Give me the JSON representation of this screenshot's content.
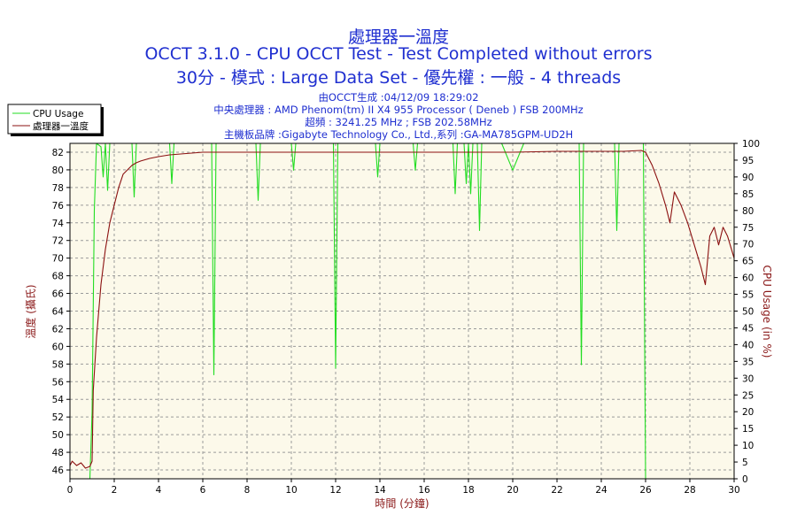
{
  "chart_data": {
    "type": "line",
    "title": "處理器一溫度",
    "subtitle": "OCCT 3.1.0 - CPU OCCT Test - Test Completed without errors",
    "subtitle2": "30分 - 模式 : Large Data Set - 優先權 : 一般 - 4 threads",
    "info": [
      "由OCCT生成 :04/12/09 18:29:02",
      "中央處理器 : AMD Phenom(tm) II X4 955 Processor ( Deneb ) FSB 200MHz",
      "超頻 : 3241.25 MHz ; FSB 202.58MHz",
      "主機板品牌 :Gigabyte Technology Co., Ltd.,系列 :GA-MA785GPM-UD2H"
    ],
    "xlabel": "時間 (分鐘)",
    "ylabel": "溫度 (攝氏)",
    "y2label": "CPU Usage (in %)",
    "xlim": [
      0,
      30
    ],
    "ylim": [
      45,
      83
    ],
    "y2lim": [
      0,
      100
    ],
    "x_ticks": [
      0,
      2,
      4,
      6,
      8,
      10,
      12,
      14,
      16,
      18,
      20,
      22,
      24,
      26,
      28,
      30
    ],
    "y_ticks": [
      46,
      48,
      50,
      52,
      54,
      56,
      58,
      60,
      62,
      64,
      66,
      68,
      70,
      72,
      74,
      76,
      78,
      80,
      82
    ],
    "y2_ticks": [
      0,
      5,
      10,
      15,
      20,
      25,
      30,
      35,
      40,
      45,
      50,
      55,
      60,
      65,
      70,
      75,
      80,
      85,
      90,
      95,
      100
    ],
    "grid": true,
    "legend_position": "top-left",
    "series": [
      {
        "name": "CPU Usage",
        "axis": "right",
        "color": "#22dd22",
        "x": [
          0,
          0.9,
          1.0,
          1.1,
          1.2,
          1.4,
          1.5,
          1.6,
          1.7,
          1.8,
          2.0,
          2.2,
          2.8,
          2.9,
          3.0,
          3.1,
          3.5,
          4.5,
          4.6,
          4.7,
          5.5,
          6.4,
          6.5,
          6.6,
          7.0,
          8.0,
          8.4,
          8.5,
          8.6,
          9.0,
          10.0,
          10.1,
          10.2,
          11.0,
          11.9,
          12.0,
          12.1,
          12.8,
          13.8,
          13.9,
          14.0,
          15.0,
          15.5,
          15.6,
          15.7,
          16.5,
          17.3,
          17.4,
          17.5,
          17.8,
          17.9,
          18.0,
          18.1,
          18.2,
          18.4,
          18.5,
          18.6,
          18.7,
          19.5,
          20.0,
          20.5,
          21.5,
          22.5,
          23.0,
          23.1,
          23.2,
          23.3,
          24.0,
          24.6,
          24.7,
          24.8,
          25.5,
          25.9,
          26.0,
          26.1
        ],
        "values": [
          0,
          0,
          20,
          80,
          100,
          99,
          90,
          100,
          86,
          100,
          100,
          100,
          100,
          84,
          100,
          100,
          100,
          100,
          88,
          100,
          100,
          100,
          31,
          100,
          100,
          100,
          100,
          83,
          100,
          100,
          100,
          92,
          100,
          100,
          100,
          33,
          100,
          100,
          100,
          90,
          100,
          100,
          100,
          92,
          100,
          100,
          100,
          85,
          100,
          100,
          88,
          100,
          85,
          100,
          100,
          74,
          100,
          100,
          100,
          92,
          100,
          100,
          100,
          100,
          34,
          100,
          100,
          100,
          100,
          74,
          100,
          100,
          100,
          0,
          0
        ]
      },
      {
        "name": "處理器一溫度",
        "axis": "left",
        "color": "#8b1010",
        "x": [
          0,
          0.1,
          0.3,
          0.5,
          0.7,
          0.9,
          1.0,
          1.05,
          1.2,
          1.4,
          1.6,
          1.8,
          2.0,
          2.2,
          2.4,
          2.6,
          2.8,
          3.0,
          3.2,
          3.6,
          4.0,
          4.5,
          5.0,
          6.0,
          8.0,
          10.0,
          12.0,
          14.0,
          16.0,
          18.0,
          20.0,
          22.0,
          24.0,
          25.0,
          25.8,
          26.0,
          26.3,
          26.6,
          26.9,
          27.1,
          27.3,
          27.6,
          27.9,
          28.2,
          28.5,
          28.7,
          28.9,
          29.1,
          29.3,
          29.5,
          29.7,
          30.0
        ],
        "values": [
          46.5,
          47.0,
          46.5,
          46.8,
          46.2,
          46.4,
          47.0,
          55.0,
          61.0,
          67.0,
          71.0,
          74.0,
          76.0,
          78.0,
          79.5,
          80.0,
          80.5,
          80.8,
          81.0,
          81.3,
          81.5,
          81.7,
          81.8,
          82.0,
          82.0,
          82.0,
          82.0,
          82.0,
          82.0,
          82.0,
          82.0,
          82.1,
          82.1,
          82.1,
          82.2,
          82.0,
          80.5,
          78.5,
          76.0,
          74.0,
          77.5,
          76.0,
          74.0,
          71.5,
          69.0,
          67.0,
          72.5,
          73.5,
          71.5,
          73.5,
          72.5,
          70.0
        ]
      }
    ]
  }
}
